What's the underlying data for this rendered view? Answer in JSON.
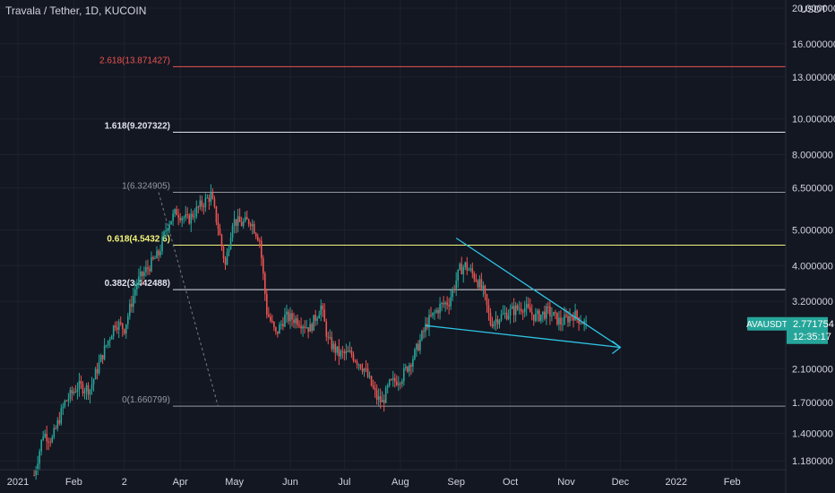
{
  "header": {
    "title": "Travala / Tether, 1D, KUCOIN",
    "currency": "USDT"
  },
  "colors": {
    "background": "#131722",
    "up": "#26a69a",
    "down": "#ef5350",
    "fib_red": "#ef5350",
    "fib_white": "#e0e3eb",
    "fib_yellow": "#f5f57a",
    "fib_gray": "#9598a1",
    "trendline": "#2ec4e4",
    "grid": "#1e222d",
    "price_badge": "#26a69a"
  },
  "chart_data": {
    "type": "candlestick",
    "symbol": "AVAUSDT",
    "y_scale": "log",
    "ylim": [
      1.08,
      20.0
    ],
    "y_ticks": [
      {
        "value": 20.0,
        "label": "20.000000"
      },
      {
        "value": 16.0,
        "label": "16.000000"
      },
      {
        "value": 13.0,
        "label": "13.000000"
      },
      {
        "value": 10.0,
        "label": "10.000000"
      },
      {
        "value": 8.0,
        "label": "8.000000"
      },
      {
        "value": 6.5,
        "label": "6.500000"
      },
      {
        "value": 5.0,
        "label": "5.000000"
      },
      {
        "value": 4.0,
        "label": "4.000000"
      },
      {
        "value": 3.2,
        "label": "3.200000"
      },
      {
        "value": 2.1,
        "label": "2.100000"
      },
      {
        "value": 1.7,
        "label": "1.700000"
      },
      {
        "value": 1.4,
        "label": "1.400000"
      },
      {
        "value": 1.18,
        "label": "1.180000"
      }
    ],
    "x_ticks": [
      "2021",
      "Feb",
      "2",
      "Apr",
      "May",
      "Jun",
      "Jul",
      "Aug",
      "Sep",
      "Oct",
      "Nov",
      "Dec",
      "2022",
      "Feb"
    ],
    "fib_levels": [
      {
        "ratio": "2.618",
        "price": "13.871427",
        "label": "2.618(13.871427)",
        "color": "fib_red",
        "bold": false
      },
      {
        "ratio": "1.618",
        "price": "9.207322",
        "label": "1.618(9.207322)",
        "color": "fib_white",
        "bold": true
      },
      {
        "ratio": "1",
        "price": "6.324905",
        "label": "1(6.324905)",
        "color": "fib_gray",
        "bold": false
      },
      {
        "ratio": "0.618",
        "price": "4.543276",
        "label": "0.618(4.5432 6)",
        "color": "fib_yellow",
        "bold": true
      },
      {
        "ratio": "0.382",
        "price": "3.442488",
        "label": "0.382(3.442488)",
        "color": "fib_white",
        "bold": true
      },
      {
        "ratio": "0",
        "price": "1.660799",
        "label": "0(1.660799)",
        "color": "fib_gray",
        "bold": false
      }
    ],
    "trendlines": [
      {
        "name": "upper",
        "from": {
          "date": "2021-09-01",
          "price": 4.75
        },
        "to": {
          "date": "2021-12-01",
          "price": 2.4
        }
      },
      {
        "name": "lower",
        "from": {
          "date": "2021-08-15",
          "price": 2.75
        },
        "to": {
          "date": "2021-12-01",
          "price": 2.4
        }
      }
    ],
    "last_price": {
      "symbol": "AVAUSDT",
      "value": "2.771754",
      "countdown": "12:35:17"
    },
    "keypoints": [
      [
        "2021-01-10",
        1.08
      ],
      [
        "2021-01-15",
        1.4
      ],
      [
        "2021-01-20",
        1.35
      ],
      [
        "2021-01-27",
        1.7
      ],
      [
        "2021-02-03",
        1.88
      ],
      [
        "2021-02-10",
        1.85
      ],
      [
        "2021-02-17",
        2.3
      ],
      [
        "2021-02-24",
        2.8
      ],
      [
        "2021-03-01",
        2.7
      ],
      [
        "2021-03-08",
        3.6
      ],
      [
        "2021-03-15",
        4.0
      ],
      [
        "2021-03-20",
        4.3
      ],
      [
        "2021-03-25",
        5.2
      ],
      [
        "2021-03-30",
        5.6
      ],
      [
        "2021-04-05",
        5.3
      ],
      [
        "2021-04-12",
        5.8
      ],
      [
        "2021-04-18",
        6.2
      ],
      [
        "2021-04-22",
        5.1
      ],
      [
        "2021-04-26",
        4.0
      ],
      [
        "2021-04-30",
        5.3
      ],
      [
        "2021-05-05",
        5.2
      ],
      [
        "2021-05-10",
        5.3
      ],
      [
        "2021-05-15",
        4.7
      ],
      [
        "2021-05-19",
        3.0
      ],
      [
        "2021-05-24",
        2.6
      ],
      [
        "2021-05-29",
        2.9
      ],
      [
        "2021-06-05",
        2.85
      ],
      [
        "2021-06-12",
        2.7
      ],
      [
        "2021-06-18",
        3.1
      ],
      [
        "2021-06-22",
        2.5
      ],
      [
        "2021-06-28",
        2.3
      ],
      [
        "2021-07-05",
        2.3
      ],
      [
        "2021-07-12",
        2.1
      ],
      [
        "2021-07-19",
        1.75
      ],
      [
        "2021-07-22",
        1.7
      ],
      [
        "2021-07-26",
        1.9
      ],
      [
        "2021-08-02",
        2.0
      ],
      [
        "2021-08-09",
        2.3
      ],
      [
        "2021-08-16",
        2.8
      ],
      [
        "2021-08-23",
        3.1
      ],
      [
        "2021-08-28",
        3.2
      ],
      [
        "2021-09-03",
        3.9
      ],
      [
        "2021-09-06",
        4.0
      ],
      [
        "2021-09-12",
        3.7
      ],
      [
        "2021-09-16",
        3.4
      ],
      [
        "2021-09-20",
        2.8
      ],
      [
        "2021-09-25",
        2.9
      ],
      [
        "2021-10-01",
        3.0
      ],
      [
        "2021-10-08",
        3.1
      ],
      [
        "2021-10-15",
        2.9
      ],
      [
        "2021-10-22",
        3.0
      ],
      [
        "2021-10-29",
        2.8
      ],
      [
        "2021-11-05",
        2.95
      ],
      [
        "2021-11-12",
        2.77
      ]
    ]
  }
}
